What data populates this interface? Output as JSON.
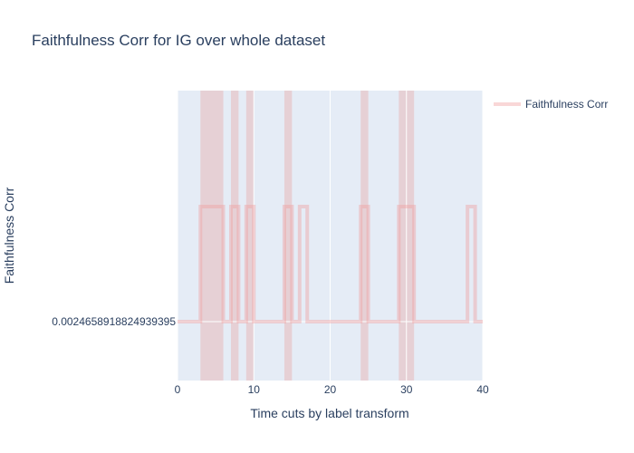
{
  "chart_data": {
    "type": "line",
    "title": "Faithfulness Corr for IG over whole dataset",
    "xlabel": "Time cuts by label transform",
    "ylabel": "Faithfulness Corr",
    "xlim": [
      0,
      40
    ],
    "x_ticks": [
      "0",
      "10",
      "20",
      "30",
      "40"
    ],
    "y_ticks": [
      "0.0024658918824939395"
    ],
    "legend_position": "top-right",
    "grid": true,
    "line_shape": "step",
    "series": [
      {
        "name": "Faithfulness Corr",
        "color": "#ef9a9a",
        "baseline_value": "0.0024658918824939395",
        "points": [
          [
            0,
            0
          ],
          [
            3,
            0
          ],
          [
            3,
            1
          ],
          [
            6,
            1
          ],
          [
            6,
            0
          ],
          [
            7,
            0
          ],
          [
            7,
            1
          ],
          [
            8,
            1
          ],
          [
            8,
            0
          ],
          [
            9,
            0
          ],
          [
            9,
            1
          ],
          [
            10,
            1
          ],
          [
            10,
            0
          ],
          [
            14,
            0
          ],
          [
            14,
            1
          ],
          [
            15,
            1
          ],
          [
            15,
            0
          ],
          [
            16,
            0
          ],
          [
            16,
            1
          ],
          [
            17,
            1
          ],
          [
            17,
            0
          ],
          [
            24,
            0
          ],
          [
            24,
            1
          ],
          [
            25,
            1
          ],
          [
            25,
            0
          ],
          [
            29,
            0
          ],
          [
            29,
            1
          ],
          [
            31,
            1
          ],
          [
            31,
            0
          ],
          [
            38,
            0
          ],
          [
            38,
            1
          ],
          [
            39,
            1
          ],
          [
            39,
            0
          ],
          [
            40,
            0
          ]
        ]
      }
    ],
    "highlight_bands": [
      [
        3,
        6
      ],
      [
        7,
        8
      ],
      [
        9,
        10
      ],
      [
        14,
        15
      ],
      [
        24,
        25
      ],
      [
        29,
        31
      ]
    ],
    "colors": {
      "plot_bg": "#e5ecf6",
      "grid": "#ffffff",
      "band": "#e8b9b9",
      "text": "#2a3f5f"
    }
  }
}
